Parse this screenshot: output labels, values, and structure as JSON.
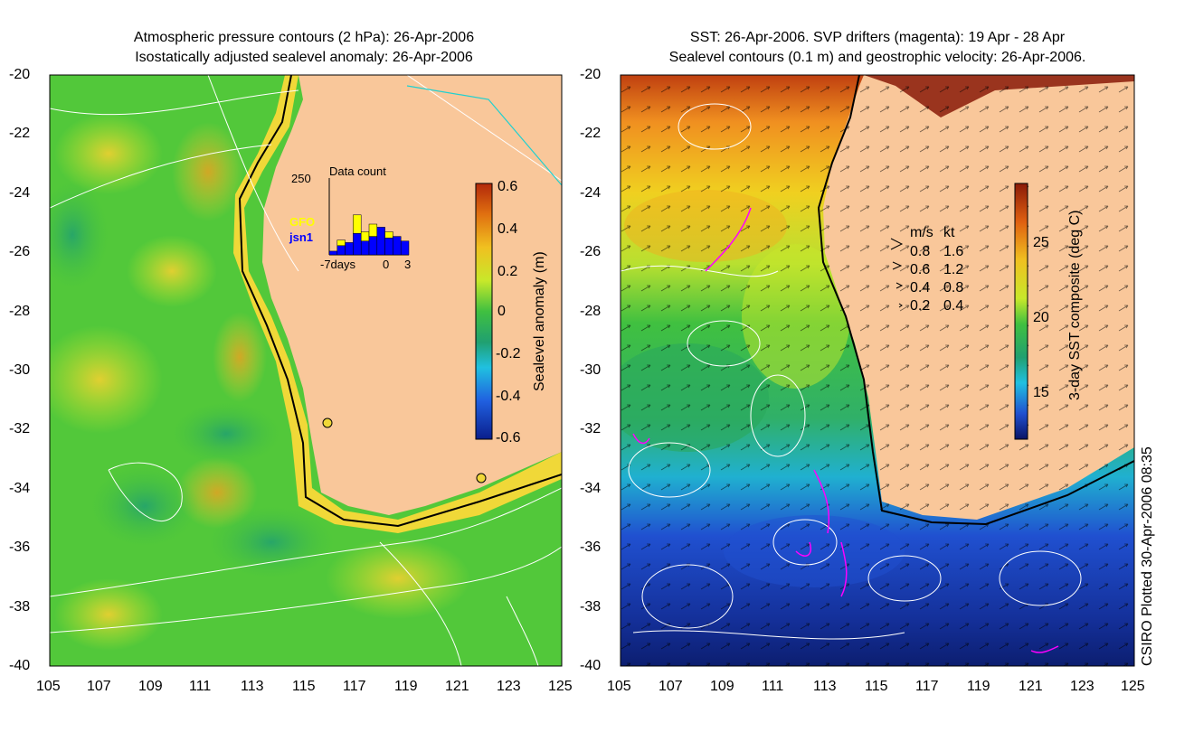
{
  "left_panel": {
    "title_line1": "Atmospheric pressure contours (2 hPa): 26-Apr-2006",
    "title_line2": "Isostatically adjusted sealevel anomaly: 26-Apr-2006",
    "colorbar": {
      "label": "Sealevel anomaly (m)",
      "ticks": [
        "0.6",
        "0.4",
        "0.2",
        "0",
        "-0.2",
        "-0.4",
        "-0.6"
      ]
    },
    "inset": {
      "title": "Data count",
      "ymax_label": "250",
      "x_labels": [
        "-7days",
        "0",
        "3"
      ],
      "legend": [
        {
          "name": "GFO",
          "color": "#ffff00"
        },
        {
          "name": "jsn1",
          "color": "#0000ff"
        }
      ],
      "bars": [
        {
          "day": -7,
          "gfo": 0,
          "jsn1": 12
        },
        {
          "day": -6,
          "gfo": 18,
          "jsn1": 30
        },
        {
          "day": -5,
          "gfo": 0,
          "jsn1": 40
        },
        {
          "day": -4,
          "gfo": 60,
          "jsn1": 70
        },
        {
          "day": -3,
          "gfo": 30,
          "jsn1": 45
        },
        {
          "day": -2,
          "gfo": 40,
          "jsn1": 60
        },
        {
          "day": -1,
          "gfo": 0,
          "jsn1": 90
        },
        {
          "day": 0,
          "gfo": 20,
          "jsn1": 55
        },
        {
          "day": 1,
          "gfo": 0,
          "jsn1": 60
        },
        {
          "day": 2,
          "gfo": 0,
          "jsn1": 45
        }
      ]
    }
  },
  "right_panel": {
    "title_line1": "SST: 26-Apr-2006. SVP drifters (magenta): 19 Apr - 28 Apr",
    "title_line2": "Sealevel contours (0.1 m) and geostrophic velocity: 26-Apr-2006.",
    "colorbar": {
      "label": "3-day SST composite (deg C)",
      "ticks": [
        "25",
        "20",
        "15"
      ]
    },
    "velocity_legend": {
      "header_ms": "m/s",
      "header_kt": "kt",
      "rows": [
        {
          "ms": "0.8",
          "kt": "1.6"
        },
        {
          "ms": "0.6",
          "kt": "1.2"
        },
        {
          "ms": "0.4",
          "kt": "0.8"
        },
        {
          "ms": "0.2",
          "kt": "0.4"
        }
      ]
    }
  },
  "axes": {
    "lat_ticks": [
      "-20",
      "-22",
      "-24",
      "-26",
      "-28",
      "-30",
      "-32",
      "-34",
      "-36",
      "-38",
      "-40"
    ],
    "lon_ticks": [
      "105",
      "107",
      "109",
      "111",
      "113",
      "115",
      "117",
      "119",
      "121",
      "123",
      "125"
    ]
  },
  "credit": "CSIRO Plotted 30-Apr-2006 08:35",
  "colors": {
    "land": "#f9c79a",
    "ocean_green": "#3cc043",
    "anomaly_yellow": "#c8e82a",
    "drifter": "#ff00ff",
    "sst_blue": "#1a3fbf"
  }
}
